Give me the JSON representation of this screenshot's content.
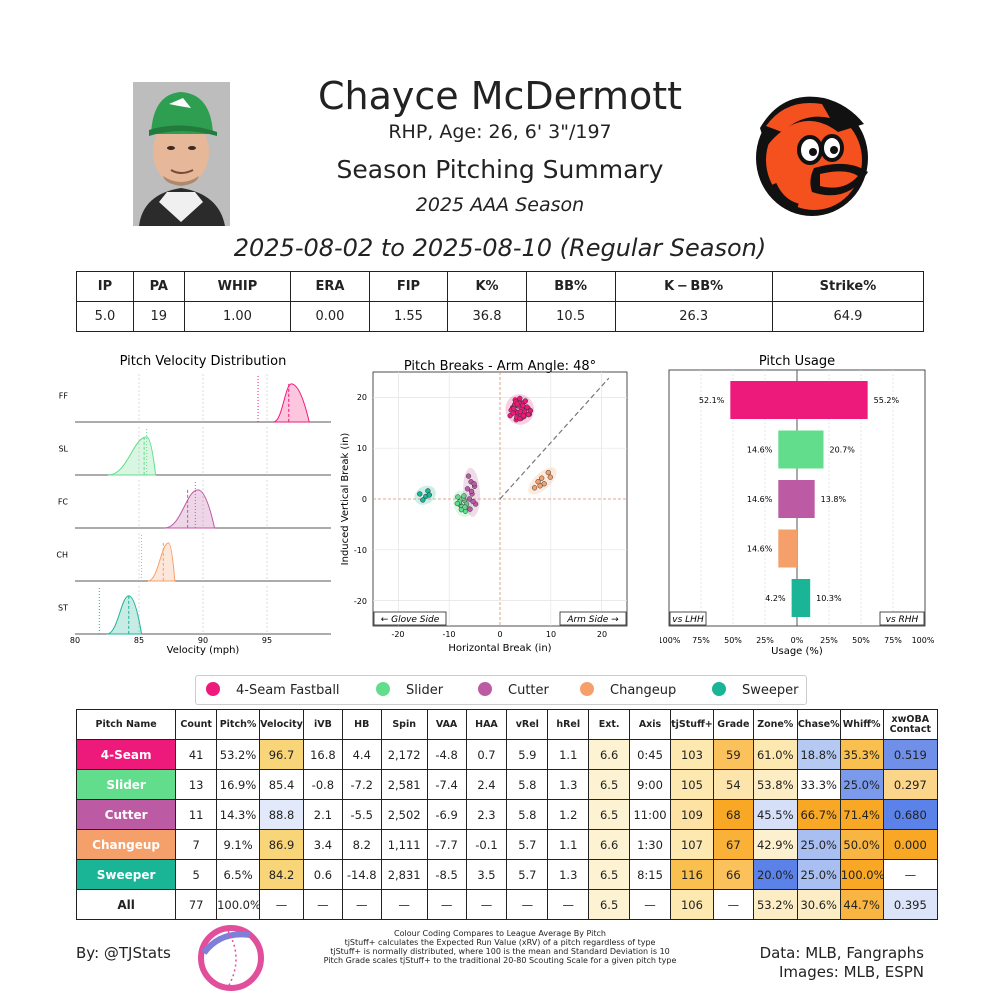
{
  "header": {
    "name": "Chayce McDermott",
    "bio": "RHP, Age: 26, 6' 3\"/197",
    "summary_title": "Season Pitching Summary",
    "season": "2025 AAA Season",
    "date_range": "2025-08-02 to 2025-08-10 (Regular Season)"
  },
  "stat_line": {
    "headers": [
      "IP",
      "PA",
      "WHIP",
      "ERA",
      "FIP",
      "K%",
      "BB%",
      "K − BB%",
      "Strike%"
    ],
    "values": [
      "5.0",
      "19",
      "1.00",
      "0.00",
      "1.55",
      "36.8",
      "10.5",
      "26.3",
      "64.9"
    ]
  },
  "colors": {
    "FF": "#ee1a7b",
    "SL": "#62dd8c",
    "FC": "#bc5ba3",
    "CH": "#f5a06b",
    "ST": "#1ab497",
    "orioles_orange": "#f4511e",
    "table_high": "#f9a825",
    "table_low": "#5b82e8"
  },
  "velocity_chart": {
    "title": "Pitch Velocity Distribution",
    "xlabel": "Velocity (mph)",
    "xlim": [
      80,
      100
    ],
    "xticks": [
      "80",
      "85",
      "90",
      "95"
    ],
    "rows": [
      {
        "label": "FF",
        "mean": 96.7,
        "league_mean": 94.3,
        "min": 95.5,
        "max": 98.3,
        "peak": 96.9
      },
      {
        "label": "SL",
        "mean": 85.4,
        "league_mean": 85.6,
        "min": 82.6,
        "max": 86.3,
        "peak": 85.6
      },
      {
        "label": "FC",
        "mean": 88.8,
        "league_mean": 89.4,
        "min": 87.0,
        "max": 90.9,
        "peak": 89.6
      },
      {
        "label": "CH",
        "mean": 86.9,
        "league_mean": 85.2,
        "min": 85.7,
        "max": 87.8,
        "peak": 87.3
      },
      {
        "label": "ST",
        "mean": 84.2,
        "league_mean": 81.9,
        "min": 82.5,
        "max": 85.2,
        "peak": 84.2
      }
    ]
  },
  "break_chart": {
    "title": "Pitch Breaks - Arm Angle: 48°",
    "xlabel": "Horizontal Break (in)",
    "ylabel": "Induced Vertical Break (in)",
    "xlim": [
      -25,
      25
    ],
    "ylim": [
      -25,
      25
    ],
    "xticks": [
      "-20",
      "-10",
      "0",
      "10",
      "20"
    ],
    "yticks": [
      "20",
      "10",
      "0",
      "-10",
      "-20"
    ],
    "glove_label": "← Glove Side",
    "arm_label": "Arm Side →",
    "arm_angle": 48,
    "clusters": [
      {
        "pitch": "FF",
        "hb": [
          2.5,
          3.1,
          4.0,
          5.1,
          3.6,
          2.0,
          4.6,
          3.0,
          5.5,
          4.2,
          3.4,
          2.8,
          4.9,
          3.8,
          5.8,
          2.4,
          4.4,
          3.2,
          6.0,
          3.9,
          4.7,
          2.9,
          3.5,
          5.3,
          4.1,
          2.2,
          3.7,
          4.8,
          3.3,
          5.0,
          4.3,
          2.6,
          3.9,
          4.5,
          3.1,
          5.6,
          4.0,
          3.6,
          2.7,
          4.6,
          3.4
        ],
        "ivb": [
          18.0,
          17.2,
          19.0,
          16.8,
          18.5,
          16.4,
          17.6,
          19.5,
          17.9,
          15.9,
          16.9,
          18.2,
          19.2,
          17.1,
          16.7,
          17.7,
          18.8,
          15.6,
          17.4,
          19.8,
          16.2,
          18.6,
          17.0,
          18.1,
          16.5,
          17.5,
          18.9,
          17.3,
          16.1,
          19.3,
          17.8,
          16.9,
          15.8,
          18.4,
          19.1,
          16.6,
          17.2,
          18.3,
          17.8,
          16.4,
          18.7
        ]
      },
      {
        "pitch": "SL",
        "hb": [
          -7.8,
          -7.0,
          -6.4,
          -8.3,
          -7.5,
          -6.8,
          -7.2,
          -8.0,
          -6.6,
          -7.6,
          -7.1,
          -8.4,
          -6.9
        ],
        "ivb": [
          -1.2,
          -0.3,
          -1.8,
          0.4,
          -1.5,
          -2.4,
          0.2,
          -0.6,
          -1.0,
          -2.1,
          0.6,
          -0.9,
          -1.6
        ]
      },
      {
        "pitch": "FC",
        "hb": [
          -6.2,
          -5.7,
          -5.0,
          -5.5,
          -6.0,
          -4.8,
          -5.9,
          -5.3,
          -6.4,
          -5.1,
          -5.6
        ],
        "ivb": [
          4.5,
          3.4,
          2.5,
          1.0,
          0.0,
          -1.0,
          -2.0,
          -0.5,
          2.0,
          3.0,
          1.5
        ]
      },
      {
        "pitch": "CH",
        "hb": [
          6.8,
          7.5,
          8.2,
          9.5,
          8.7,
          7.9,
          9.9
        ],
        "ivb": [
          2.2,
          3.4,
          4.1,
          5.2,
          3.0,
          2.6,
          4.3
        ]
      },
      {
        "pitch": "ST",
        "hb": [
          -15.8,
          -14.6,
          -14.2,
          -15.2,
          -13.9
        ],
        "ivb": [
          1.0,
          0.5,
          1.6,
          -0.2,
          0.8
        ]
      }
    ]
  },
  "usage_chart": {
    "title": "Pitch Usage",
    "xlabel": "Usage (%)",
    "xlim": [
      -100,
      100
    ],
    "xticks": [
      "100%",
      "75%",
      "50%",
      "25%",
      "0%",
      "25%",
      "50%",
      "75%",
      "100%"
    ],
    "vs_lhh": "vs LHH",
    "vs_rhh": "vs RHH",
    "rows": [
      {
        "pitch": "FF",
        "lhh": 52.1,
        "rhh": 55.2,
        "lhh_label": "52.1%",
        "rhh_label": "55.2%"
      },
      {
        "pitch": "SL",
        "lhh": 14.6,
        "rhh": 20.7,
        "lhh_label": "14.6%",
        "rhh_label": "20.7%"
      },
      {
        "pitch": "FC",
        "lhh": 14.6,
        "rhh": 13.8,
        "lhh_label": "14.6%",
        "rhh_label": "13.8%"
      },
      {
        "pitch": "CH",
        "lhh": 14.6,
        "rhh": 0,
        "lhh_label": "14.6%",
        "rhh_label": ""
      },
      {
        "pitch": "ST",
        "lhh": 4.2,
        "rhh": 10.3,
        "lhh_label": "4.2%",
        "rhh_label": "10.3%"
      }
    ]
  },
  "legend": [
    "4-Seam Fastball",
    "Slider",
    "Cutter",
    "Changeup",
    "Sweeper"
  ],
  "pitch_table": {
    "headers": [
      "Pitch Name",
      "Count",
      "Pitch%",
      "Velocity",
      "iVB",
      "HB",
      "Spin",
      "VAA",
      "HAA",
      "vRel",
      "hRel",
      "Ext.",
      "Axis",
      "tjStuff+",
      "Grade",
      "Zone%",
      "Chase%",
      "Whiff%",
      "xwOBA Contact"
    ],
    "rows": [
      {
        "name": "4-Seam",
        "key": "FF",
        "cells": [
          "41",
          "53.2%",
          "96.7",
          "16.8",
          "4.4",
          "2,172",
          "-4.8",
          "0.7",
          "5.9",
          "1.1",
          "6.6",
          "0:45",
          "103",
          "59",
          "61.0%",
          "18.8%",
          "35.3%",
          "0.519"
        ]
      },
      {
        "name": "Slider",
        "key": "SL",
        "cells": [
          "13",
          "16.9%",
          "85.4",
          "-0.8",
          "-7.2",
          "2,581",
          "-7.4",
          "2.4",
          "5.8",
          "1.3",
          "6.5",
          "9:00",
          "105",
          "54",
          "53.8%",
          "33.3%",
          "25.0%",
          "0.297"
        ]
      },
      {
        "name": "Cutter",
        "key": "FC",
        "cells": [
          "11",
          "14.3%",
          "88.8",
          "2.1",
          "-5.5",
          "2,502",
          "-6.9",
          "2.3",
          "5.8",
          "1.2",
          "6.5",
          "11:00",
          "109",
          "68",
          "45.5%",
          "66.7%",
          "71.4%",
          "0.680"
        ]
      },
      {
        "name": "Changeup",
        "key": "CH",
        "cells": [
          "7",
          "9.1%",
          "86.9",
          "3.4",
          "8.2",
          "1,111",
          "-7.7",
          "-0.1",
          "5.7",
          "1.1",
          "6.6",
          "1:30",
          "107",
          "67",
          "42.9%",
          "25.0%",
          "50.0%",
          "0.000"
        ]
      },
      {
        "name": "Sweeper",
        "key": "ST",
        "cells": [
          "5",
          "6.5%",
          "84.2",
          "0.6",
          "-14.8",
          "2,831",
          "-8.5",
          "3.5",
          "5.7",
          "1.3",
          "6.5",
          "8:15",
          "116",
          "66",
          "20.0%",
          "25.0%",
          "100.0%",
          "—"
        ]
      },
      {
        "name": "All",
        "key": "ALL",
        "cells": [
          "77",
          "100.0%",
          "—",
          "—",
          "—",
          "—",
          "—",
          "—",
          "—",
          "—",
          "6.5",
          "—",
          "106",
          "—",
          "53.2%",
          "30.6%",
          "44.7%",
          "0.395"
        ]
      }
    ],
    "cell_colors": [
      [
        "",
        "",
        "#f9d57a",
        "",
        "",
        "",
        "",
        "",
        "",
        "",
        "#fdf3d3",
        "",
        "#fde8b0",
        "#fbc25c",
        "#fde8b0",
        "#b6c9f3",
        "#f9c04f",
        "#6f8fe9"
      ],
      [
        "",
        "",
        "",
        "",
        "",
        "",
        "",
        "",
        "",
        "",
        "#fdf3d3",
        "",
        "#fde8b0",
        "#fde4aa",
        "#fdedc4",
        "",
        "#7c9aeb",
        "#fbd58a"
      ],
      [
        "",
        "",
        "#e2e9fb",
        "",
        "",
        "",
        "",
        "",
        "",
        "",
        "#fdf3d3",
        "",
        "#fde2a4",
        "#f9a825",
        "#d5e0f8",
        "#f9a825",
        "#f9a825",
        "#5b82e8"
      ],
      [
        "",
        "",
        "#f9d57a",
        "",
        "",
        "",
        "",
        "",
        "",
        "",
        "#fdf3d3",
        "",
        "#fde8b0",
        "#f9b137",
        "#fdf0cf",
        "#a9bff1",
        "#f9b542",
        "#f9a825"
      ],
      [
        "",
        "",
        "#f9d57a",
        "",
        "",
        "",
        "",
        "",
        "",
        "",
        "#fdf3d3",
        "",
        "#f9c04f",
        "#fbc25c",
        "#5b82e8",
        "#a9bff1",
        "#f9a825",
        ""
      ],
      [
        "",
        "",
        "",
        "",
        "",
        "",
        "",
        "",
        "",
        "",
        "#fdf3d3",
        "",
        "#fde8b0",
        "",
        "#fdedc4",
        "#fdedc4",
        "#f9b542",
        "#dbe4f9"
      ]
    ]
  },
  "footer": {
    "by": "By: @TJStats",
    "notes": [
      "Colour Coding Compares to League Average By Pitch",
      "tjStuff+ calculates the Expected Run Value (xRV) of a pitch regardless of type",
      "tjStuff+ is normally distributed, where 100 is the mean and Standard Deviation is 10",
      "Pitch Grade scales tjStuff+ to the traditional 20-80 Scouting Scale for a given pitch type"
    ],
    "data_source": "Data: MLB, Fangraphs",
    "image_source": "Images: MLB, ESPN"
  }
}
